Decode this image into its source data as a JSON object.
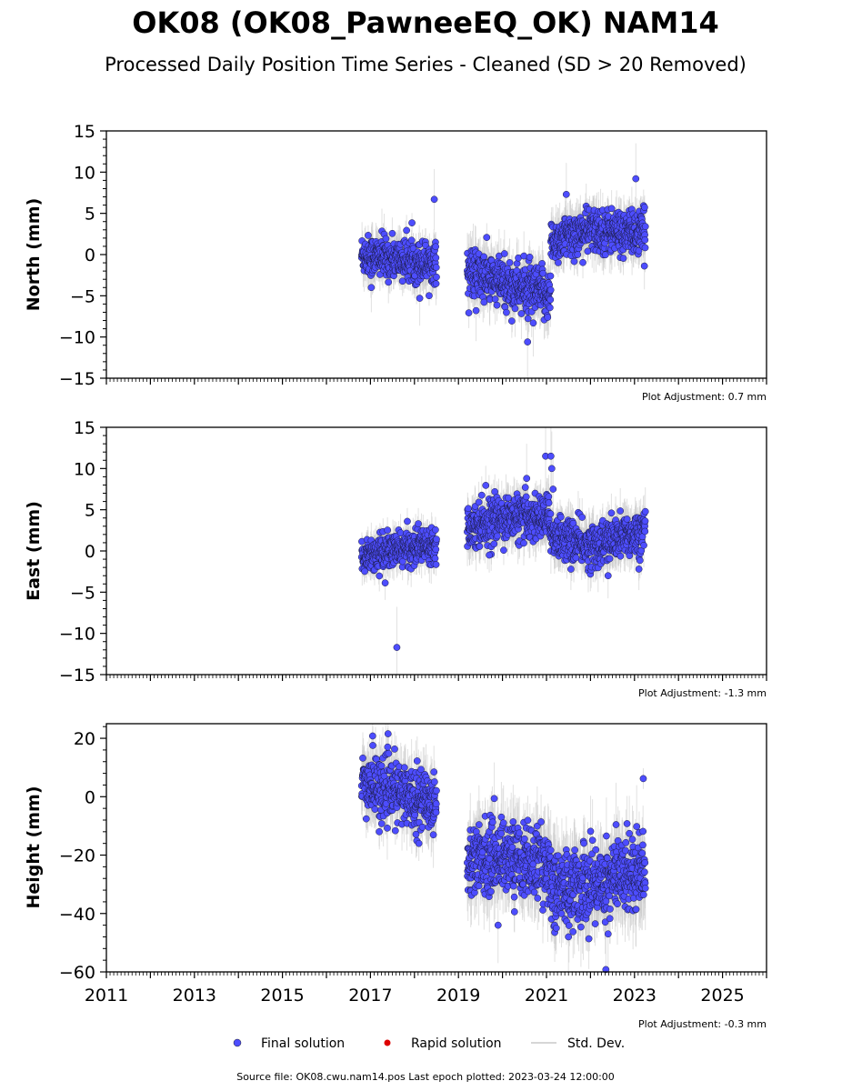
{
  "figure": {
    "title": "OK08 (OK08_PawneeEQ_OK) NAM14",
    "subtitle": "Processed Daily Position Time Series - Cleaned (SD > 20 Removed)",
    "source": "Source file: OK08.cwu.nam14.pos  Last epoch plotted: 2023-03-24 12:00:00"
  },
  "legend": {
    "final": "Final solution",
    "rapid": "Rapid solution",
    "std": "Std. Dev."
  },
  "colors": {
    "final": "#4d4dff",
    "rapid": "#dd0000",
    "std": "#c8c8c8"
  },
  "chart_data": [
    {
      "type": "scatter",
      "ylabel": "North (mm)",
      "ylim": [
        -15,
        15
      ],
      "yticks": [
        -15,
        -10,
        -5,
        0,
        5,
        10,
        15
      ],
      "xlim": [
        2011,
        2026
      ],
      "adjustment": "Plot Adjustment: 0.7 mm",
      "segments": [
        {
          "x0": 2016.8,
          "x1": 2018.5,
          "y": [
            [
              2016.8,
              0.0
            ],
            [
              2017.5,
              -0.5
            ],
            [
              2018.5,
              -1.0
            ]
          ],
          "spread": 1.2
        },
        {
          "x0": 2019.2,
          "x1": 2021.1,
          "y": [
            [
              2019.2,
              -2.0
            ],
            [
              2020.0,
              -3.5
            ],
            [
              2021.1,
              -5.0
            ]
          ],
          "spread": 1.5
        },
        {
          "x0": 2021.1,
          "x1": 2023.25,
          "y": [
            [
              2021.1,
              1.5
            ],
            [
              2022.0,
              3.0
            ],
            [
              2023.25,
              2.5
            ]
          ],
          "spread": 1.3
        }
      ],
      "outliers": [
        [
          2018.45,
          6.7
        ],
        [
          2023.03,
          9.2
        ],
        [
          2021.45,
          7.3
        ],
        [
          2020.57,
          -10.6
        ],
        [
          2017.02,
          -4.0
        ],
        [
          2018.12,
          -5.3
        ],
        [
          2020.7,
          -8.3
        ],
        [
          2019.4,
          -6.8
        ]
      ]
    },
    {
      "type": "scatter",
      "ylabel": "East (mm)",
      "ylim": [
        -15,
        15
      ],
      "yticks": [
        -15,
        -10,
        -5,
        0,
        5,
        10,
        15
      ],
      "xlim": [
        2011,
        2026
      ],
      "adjustment": "Plot Adjustment: -1.3 mm",
      "segments": [
        {
          "x0": 2016.8,
          "x1": 2018.5,
          "y": [
            [
              2016.8,
              -0.5
            ],
            [
              2017.5,
              0.0
            ],
            [
              2018.5,
              1.0
            ]
          ],
          "spread": 1.0
        },
        {
          "x0": 2019.2,
          "x1": 2021.1,
          "y": [
            [
              2019.2,
              3.0
            ],
            [
              2020.0,
              4.0
            ],
            [
              2021.1,
              4.0
            ]
          ],
          "spread": 1.3
        },
        {
          "x0": 2021.1,
          "x1": 2023.25,
          "y": [
            [
              2021.1,
              2.0
            ],
            [
              2022.0,
              0.5
            ],
            [
              2023.25,
              2.5
            ]
          ],
          "spread": 1.3
        }
      ],
      "outliers": [
        [
          2017.6,
          -11.7
        ],
        [
          2020.98,
          11.5
        ],
        [
          2021.1,
          11.5
        ],
        [
          2021.12,
          10.0
        ],
        [
          2021.15,
          7.5
        ],
        [
          2020.55,
          8.8
        ],
        [
          2022.4,
          -3.0
        ],
        [
          2023.1,
          -2.2
        ],
        [
          2019.7,
          -0.5
        ]
      ]
    },
    {
      "type": "scatter",
      "ylabel": "Height (mm)",
      "ylim": [
        -60,
        25
      ],
      "yticks": [
        -60,
        -40,
        -20,
        0,
        20
      ],
      "xlim": [
        2011,
        2026
      ],
      "xticks": [
        2011,
        2013,
        2015,
        2017,
        2019,
        2021,
        2023,
        2025
      ],
      "adjustment": "Plot Adjustment: -0.3 mm",
      "segments": [
        {
          "x0": 2016.8,
          "x1": 2018.5,
          "y": [
            [
              2016.8,
              5.0
            ],
            [
              2017.5,
              2.0
            ],
            [
              2018.5,
              -2.0
            ]
          ],
          "spread": 5.0
        },
        {
          "x0": 2019.2,
          "x1": 2021.1,
          "y": [
            [
              2019.2,
              -22.0
            ],
            [
              2020.0,
              -20.0
            ],
            [
              2021.1,
              -24.0
            ]
          ],
          "spread": 6.0
        },
        {
          "x0": 2021.1,
          "x1": 2023.25,
          "y": [
            [
              2021.1,
              -32.0
            ],
            [
              2022.0,
              -30.0
            ],
            [
              2023.25,
              -24.0
            ]
          ],
          "spread": 6.5
        }
      ],
      "outliers": [
        [
          2017.05,
          20.8
        ],
        [
          2023.2,
          6.2
        ],
        [
          2022.35,
          -59.2
        ],
        [
          2019.9,
          -44.0
        ],
        [
          2021.5,
          -48.0
        ],
        [
          2017.2,
          -12.0
        ],
        [
          2018.1,
          -16.0
        ],
        [
          2022.4,
          -47.0
        ]
      ]
    }
  ]
}
